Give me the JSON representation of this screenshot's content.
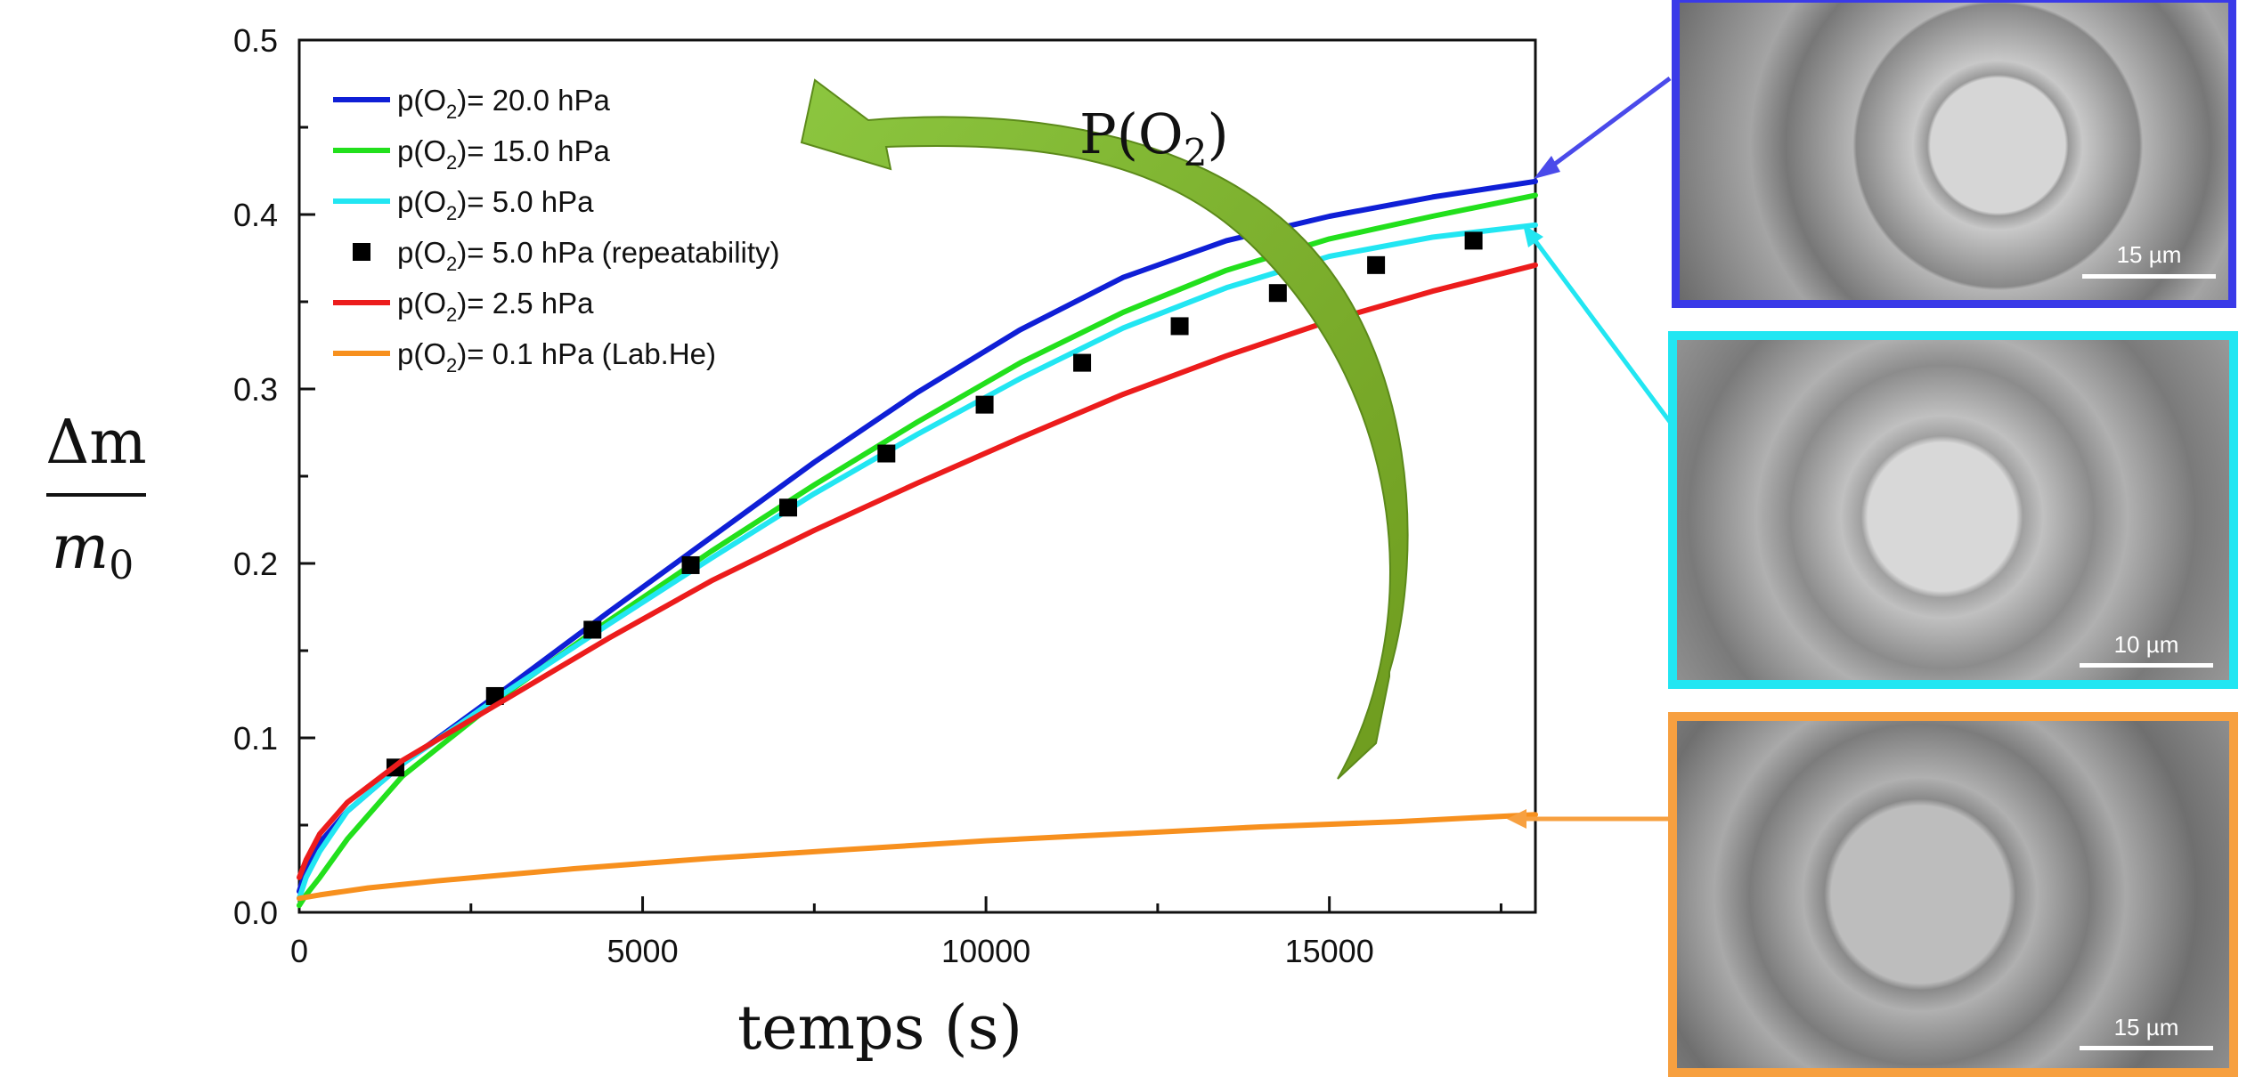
{
  "chart_data": {
    "type": "line",
    "xlabel": "temps (s)",
    "ylabel_numerator": "Δm",
    "ylabel_denominator": "m",
    "ylabel_denominator_sub": "0",
    "xlim": [
      0,
      18000
    ],
    "ylim": [
      0,
      0.5
    ],
    "x_ticks": [
      0,
      5000,
      10000,
      15000
    ],
    "x_tick_labels": [
      "0",
      "5000",
      "10000",
      "15000"
    ],
    "y_ticks": [
      0.0,
      0.1,
      0.2,
      0.3,
      0.4,
      0.5
    ],
    "y_tick_labels": [
      "0.0",
      "0.1",
      "0.2",
      "0.3",
      "0.4",
      "0.5"
    ],
    "grid": false,
    "legend_position": "top-left",
    "annotation": {
      "main": "P(O",
      "sub": "2",
      "close": ")"
    },
    "series": [
      {
        "name": "p(O2)= 20.0 hPa",
        "legend": {
          "pre": "p(O",
          "sub": "2",
          "post": ")= 20.0 hPa"
        },
        "color": "#0f1fd6",
        "kind": "line",
        "x": [
          0,
          100,
          300,
          700,
          1500,
          3000,
          4500,
          6000,
          7500,
          9000,
          10500,
          12000,
          13500,
          15000,
          16500,
          18000
        ],
        "y": [
          0.012,
          0.025,
          0.04,
          0.058,
          0.085,
          0.128,
          0.172,
          0.215,
          0.258,
          0.298,
          0.334,
          0.364,
          0.385,
          0.399,
          0.41,
          0.419
        ]
      },
      {
        "name": "p(O2)= 15.0 hPa",
        "legend": {
          "pre": "p(O",
          "sub": "2",
          "post": ")= 15.0 hPa"
        },
        "color": "#22e01c",
        "kind": "line",
        "x": [
          0,
          100,
          300,
          700,
          1500,
          3000,
          4500,
          6000,
          7500,
          9000,
          10500,
          12000,
          13500,
          15000,
          16500,
          18000
        ],
        "y": [
          0.004,
          0.01,
          0.02,
          0.042,
          0.078,
          0.125,
          0.167,
          0.207,
          0.245,
          0.281,
          0.315,
          0.344,
          0.368,
          0.386,
          0.399,
          0.411
        ]
      },
      {
        "name": "p(O2)= 5.0 hPa",
        "legend": {
          "pre": "p(O",
          "sub": "2",
          "post": ")=   5.0 hPa"
        },
        "color": "#22e6f2",
        "kind": "line",
        "x": [
          0,
          100,
          300,
          700,
          1500,
          3000,
          4500,
          6000,
          7500,
          9000,
          10500,
          12000,
          13500,
          15000,
          16500,
          18000
        ],
        "y": [
          0.008,
          0.02,
          0.035,
          0.058,
          0.085,
          0.126,
          0.165,
          0.203,
          0.24,
          0.274,
          0.306,
          0.335,
          0.358,
          0.376,
          0.387,
          0.394
        ]
      },
      {
        "name": "p(O2)= 5.0 hPa (repeatability)",
        "legend": {
          "pre": "p(O",
          "sub": "2",
          "post": ")=   5.0 hPa (repeatability)"
        },
        "color": "#000000",
        "kind": "marker",
        "x": [
          1400,
          2850,
          4270,
          5700,
          7120,
          8550,
          9980,
          11400,
          12820,
          14250,
          15680,
          17100
        ],
        "y": [
          0.083,
          0.124,
          0.162,
          0.199,
          0.232,
          0.263,
          0.291,
          0.315,
          0.336,
          0.355,
          0.371,
          0.385
        ]
      },
      {
        "name": "p(O2)= 2.5 hPa",
        "legend": {
          "pre": "p(O",
          "sub": "2",
          "post": ")=   2.5 hPa"
        },
        "color": "#ec1c1c",
        "kind": "line",
        "x": [
          0,
          100,
          300,
          700,
          1500,
          3000,
          4500,
          6000,
          7500,
          9000,
          10500,
          12000,
          13500,
          15000,
          16500,
          18000
        ],
        "y": [
          0.02,
          0.03,
          0.045,
          0.063,
          0.087,
          0.122,
          0.157,
          0.19,
          0.219,
          0.246,
          0.272,
          0.297,
          0.319,
          0.339,
          0.356,
          0.371
        ]
      },
      {
        "name": "p(O2)= 0.1 hPa (Lab.He)",
        "legend": {
          "pre": "p(O",
          "sub": "2",
          "post": ")=   0.1 hPa (Lab.He)"
        },
        "color": "#f7901e",
        "kind": "line",
        "x": [
          0,
          300,
          1000,
          2000,
          4000,
          6000,
          8000,
          10000,
          12000,
          14000,
          16000,
          18000
        ],
        "y": [
          0.008,
          0.01,
          0.014,
          0.018,
          0.025,
          0.031,
          0.036,
          0.041,
          0.045,
          0.049,
          0.052,
          0.056
        ]
      }
    ]
  },
  "panels": [
    {
      "name": "sem-image-top",
      "border_color": "#3a3ae8",
      "scale_label": "15 µm",
      "arrow_target_series": 0
    },
    {
      "name": "sem-image-middle",
      "border_color": "#22e6f2",
      "scale_label": "10 µm",
      "arrow_target_series": 2
    },
    {
      "name": "sem-image-bottom",
      "border_color": "#f7a040",
      "scale_label": "15 µm",
      "arrow_target_series": 5
    }
  ],
  "colors": {
    "axis": "#111111",
    "curved_arrow": "#78a424",
    "curved_arrow_edge": "#5c8a1a"
  }
}
